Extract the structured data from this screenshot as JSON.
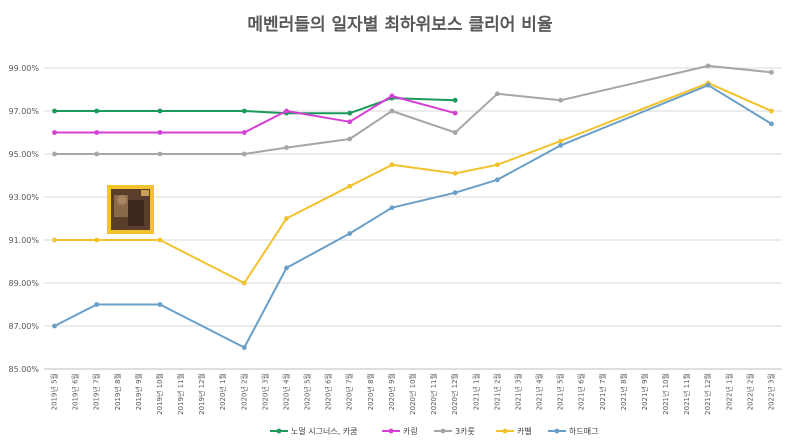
{
  "chart_data": {
    "type": "line",
    "title": "메벤러들의 일자별 최하위보스 클리어 비율",
    "xlabel": "",
    "ylabel": "",
    "ylim": [
      0.85,
      0.99
    ],
    "yticks": [
      0.85,
      0.87,
      0.89,
      0.91,
      0.93,
      0.95,
      0.97,
      0.99
    ],
    "ytick_labels": [
      "85.00%",
      "87.00%",
      "89.00%",
      "91.00%",
      "93.00%",
      "95.00%",
      "97.00%",
      "99.00%"
    ],
    "grid": true,
    "legend_position": "bottom",
    "categories": [
      "2019년 5월",
      "2019년 6월",
      "2019년 7월",
      "2019년 8월",
      "2019년 9월",
      "2019년 10월",
      "2019년 11월",
      "2019년 12월",
      "2020년 1월",
      "2020년 2월",
      "2020년 3월",
      "2020년 4월",
      "2020년 5월",
      "2020년 6월",
      "2020년 7월",
      "2020년 8월",
      "2020년 9월",
      "2020년 10월",
      "2020년 11월",
      "2020년 12월",
      "2021년 1월",
      "2021년 2월",
      "2021년 3월",
      "2021년 4월",
      "2021년 5월",
      "2021년 6월",
      "2021년 7월",
      "2021년 8월",
      "2021년 9월",
      "2021년 10월",
      "2021년 11월",
      "2021년 12월",
      "2022년 1월",
      "2022년 2월",
      "2022년 3월"
    ],
    "series": [
      {
        "name": "노멀 시그너스, 카쿰",
        "color": "#1a9a5b",
        "points": [
          [
            0,
            0.97
          ],
          [
            2,
            0.97
          ],
          [
            5,
            0.97
          ],
          [
            9,
            0.97
          ],
          [
            11,
            0.969
          ],
          [
            14,
            0.969
          ],
          [
            16,
            0.976
          ],
          [
            19,
            0.975
          ]
        ]
      },
      {
        "name": "카링",
        "color": "#d63fd6",
        "points": [
          [
            0,
            0.96
          ],
          [
            2,
            0.96
          ],
          [
            5,
            0.96
          ],
          [
            9,
            0.96
          ],
          [
            11,
            0.97
          ],
          [
            14,
            0.965
          ],
          [
            16,
            0.977
          ],
          [
            19,
            0.969
          ]
        ]
      },
      {
        "name": "3카룻",
        "color": "#a6a6a6",
        "points": [
          [
            0,
            0.95
          ],
          [
            2,
            0.95
          ],
          [
            5,
            0.95
          ],
          [
            9,
            0.95
          ],
          [
            11,
            0.953
          ],
          [
            14,
            0.957
          ],
          [
            16,
            0.97
          ],
          [
            19,
            0.96
          ],
          [
            21,
            0.978
          ],
          [
            24,
            0.975
          ],
          [
            31,
            0.991
          ],
          [
            34,
            0.988
          ]
        ]
      },
      {
        "name": "카벨",
        "color": "#f2c12e",
        "points": [
          [
            0,
            0.91
          ],
          [
            2,
            0.91
          ],
          [
            5,
            0.91
          ],
          [
            9,
            0.89
          ],
          [
            11,
            0.92
          ],
          [
            14,
            0.935
          ],
          [
            16,
            0.945
          ],
          [
            19,
            0.941
          ],
          [
            21,
            0.945
          ],
          [
            24,
            0.956
          ],
          [
            31,
            0.983
          ],
          [
            34,
            0.97
          ]
        ]
      },
      {
        "name": "하드매그",
        "color": "#6a9fc7",
        "points": [
          [
            0,
            0.87
          ],
          [
            2,
            0.88
          ],
          [
            5,
            0.88
          ],
          [
            9,
            0.86
          ],
          [
            11,
            0.897
          ],
          [
            14,
            0.913
          ],
          [
            16,
            0.925
          ],
          [
            19,
            0.932
          ],
          [
            21,
            0.938
          ],
          [
            24,
            0.954
          ],
          [
            31,
            0.982
          ],
          [
            34,
            0.964
          ]
        ]
      }
    ]
  }
}
